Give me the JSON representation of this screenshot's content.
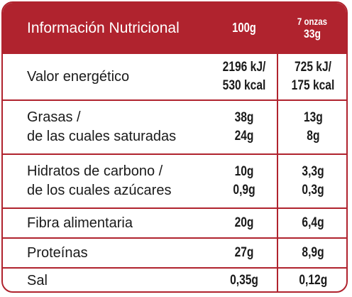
{
  "header": {
    "title": "Información Nutricional",
    "col_100": "100g",
    "col_portion_line1": "7 onzas",
    "col_portion_line2": "33g"
  },
  "rows": [
    {
      "label_1": "Valor energético",
      "v100_1": "2196 kJ/",
      "v100_2": "530 kcal",
      "vp_1": "725 kJ/",
      "vp_2": "175 kcal"
    },
    {
      "label_1": "Grasas /",
      "label_2": "de las cuales saturadas",
      "v100_1": "38g",
      "v100_2": "24g",
      "vp_1": "13g",
      "vp_2": "8g"
    },
    {
      "label_1": "Hidratos de carbono /",
      "label_2": "de los cuales azúcares",
      "v100_1": "10g",
      "v100_2": "0,9g",
      "vp_1": "3,3g",
      "vp_2": "0,3g"
    },
    {
      "label_1": "Fibra alimentaria",
      "v100_1": "20g",
      "vp_1": "6,4g"
    },
    {
      "label_1": "Proteínas",
      "v100_1": "27g",
      "vp_1": "8,9g"
    },
    {
      "label_1": "Sal",
      "v100_1": "0,35g",
      "vp_1": "0,12g"
    }
  ],
  "colors": {
    "accent": "#b0232e",
    "text": "#1a1a1a",
    "header_text": "#ffffff"
  }
}
